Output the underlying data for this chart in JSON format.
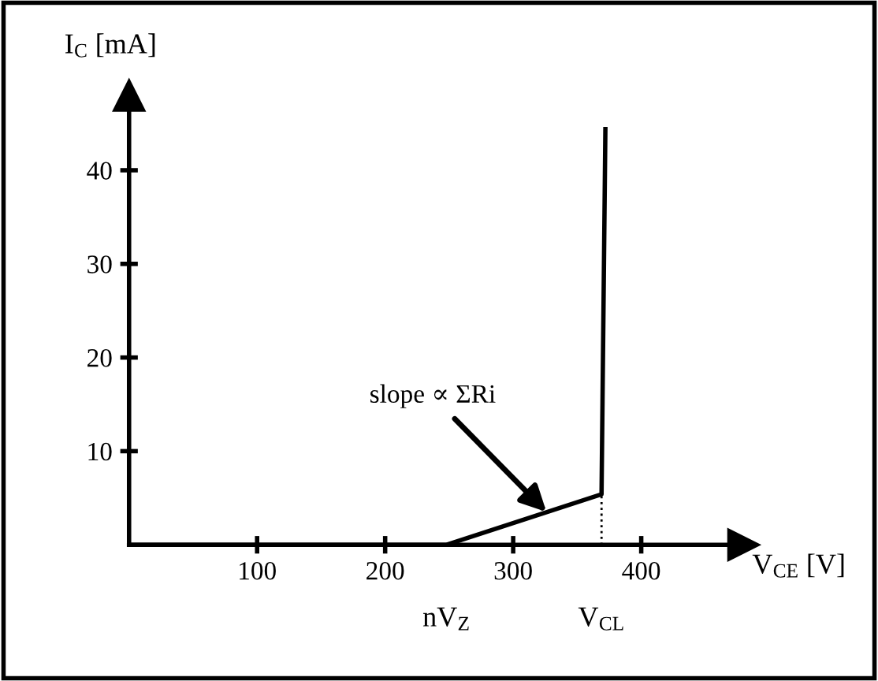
{
  "chart_data": {
    "type": "line",
    "xlabel": "V$_{CE}$ [V]",
    "ylabel": "I$_{C}$ [mA]",
    "series": [
      {
        "x": [
          0,
          248,
          369,
          372
        ],
        "values": [
          0,
          0,
          5.4,
          44.4
        ],
        "color": "#000000",
        "line_style": "solid"
      },
      {
        "x": [
          369,
          369
        ],
        "values": [
          0,
          5.4
        ],
        "color": "#000000",
        "line_style": "dotted"
      }
    ],
    "annotations": [
      {
        "text": "slope ∝ ΣRi",
        "x": 326,
        "y": 3.5
      },
      {
        "text": "nV$_{Z}$",
        "x": 248,
        "y": 0
      },
      {
        "text": "V$_{CL}$",
        "x": 369,
        "y": 0
      }
    ],
    "xlim": [
      0,
      480
    ],
    "ylim": [
      0,
      48
    ],
    "xticks": [
      100,
      200,
      300,
      400
    ],
    "yticks": [
      10,
      20,
      30,
      40
    ],
    "grid": false,
    "marker": "none"
  }
}
